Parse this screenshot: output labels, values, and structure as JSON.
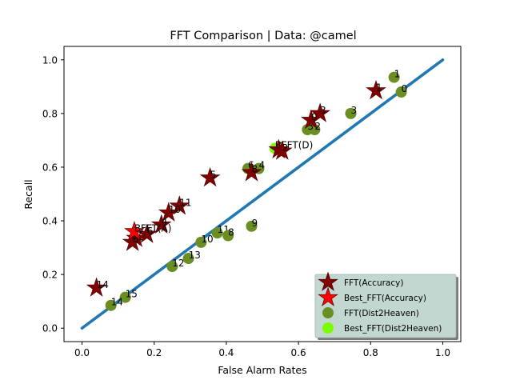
{
  "chart_data": {
    "type": "scatter",
    "title": "FFT Comparison |  Data: @camel",
    "xlabel": "False Alarm Rates",
    "ylabel": "Recall",
    "xlim": [
      -0.05,
      1.05
    ],
    "ylim": [
      -0.05,
      1.05
    ],
    "xticks": [
      "0.0",
      "0.2",
      "0.4",
      "0.6",
      "0.8",
      "1.0"
    ],
    "yticks": [
      "0.0",
      "0.2",
      "0.4",
      "0.6",
      "0.8",
      "1.0"
    ],
    "grid": false,
    "legend_position": "lower-right",
    "diagonal": {
      "x": [
        0.0,
        1.0
      ],
      "y": [
        0.0,
        1.0
      ],
      "color": "#1f77b4"
    },
    "series": [
      {
        "name": "FFT(Accuracy)",
        "marker": "star",
        "color": "#800000",
        "points": [
          {
            "x": 0.815,
            "y": 0.885,
            "label": "1"
          },
          {
            "x": 0.66,
            "y": 0.8,
            "label": "3"
          },
          {
            "x": 0.635,
            "y": 0.775,
            "label": "0"
          },
          {
            "x": 0.545,
            "y": 0.665,
            "label": "9"
          },
          {
            "x": 0.555,
            "y": 0.66,
            "label": "2"
          },
          {
            "x": 0.355,
            "y": 0.56,
            "label": "5"
          },
          {
            "x": 0.47,
            "y": 0.58,
            "label": "8"
          },
          {
            "x": 0.27,
            "y": 0.455,
            "label": "11"
          },
          {
            "x": 0.24,
            "y": 0.43,
            "label": "10"
          },
          {
            "x": 0.22,
            "y": 0.385,
            "label": "4"
          },
          {
            "x": 0.18,
            "y": 0.35,
            "label": "6"
          },
          {
            "x": 0.15,
            "y": 0.335,
            "label": "7"
          },
          {
            "x": 0.14,
            "y": 0.32,
            "label": "6"
          },
          {
            "x": 0.04,
            "y": 0.15,
            "label": "14"
          }
        ]
      },
      {
        "name": "Best_FFT(Accuracy)",
        "marker": "star",
        "color": "#ff0000",
        "points": [
          {
            "x": 0.145,
            "y": 0.36,
            "label": "B",
            "annotation": "FFT(A)"
          }
        ]
      },
      {
        "name": "FFT(Dist2Heaven)",
        "marker": "circle",
        "color": "#6b8e23",
        "points": [
          {
            "x": 0.865,
            "y": 0.935,
            "label": "1"
          },
          {
            "x": 0.885,
            "y": 0.88,
            "label": "0"
          },
          {
            "x": 0.745,
            "y": 0.8,
            "label": "3"
          },
          {
            "x": 0.645,
            "y": 0.74,
            "label": "2"
          },
          {
            "x": 0.625,
            "y": 0.74,
            "label": "3"
          },
          {
            "x": 0.46,
            "y": 0.595,
            "label": "6"
          },
          {
            "x": 0.49,
            "y": 0.595,
            "label": "4"
          },
          {
            "x": 0.47,
            "y": 0.38,
            "label": "9"
          },
          {
            "x": 0.375,
            "y": 0.355,
            "label": "11"
          },
          {
            "x": 0.405,
            "y": 0.345,
            "label": "8"
          },
          {
            "x": 0.33,
            "y": 0.32,
            "label": "10"
          },
          {
            "x": 0.295,
            "y": 0.26,
            "label": "13"
          },
          {
            "x": 0.25,
            "y": 0.23,
            "label": "12"
          },
          {
            "x": 0.12,
            "y": 0.115,
            "label": "15"
          },
          {
            "x": 0.08,
            "y": 0.085,
            "label": "14"
          }
        ]
      },
      {
        "name": "Best_FFT(Dist2Heaven)",
        "marker": "circle",
        "color": "#7cfc00",
        "points": [
          {
            "x": 0.535,
            "y": 0.67,
            "label": "B",
            "annotation": "FFT(D)"
          }
        ]
      }
    ]
  }
}
